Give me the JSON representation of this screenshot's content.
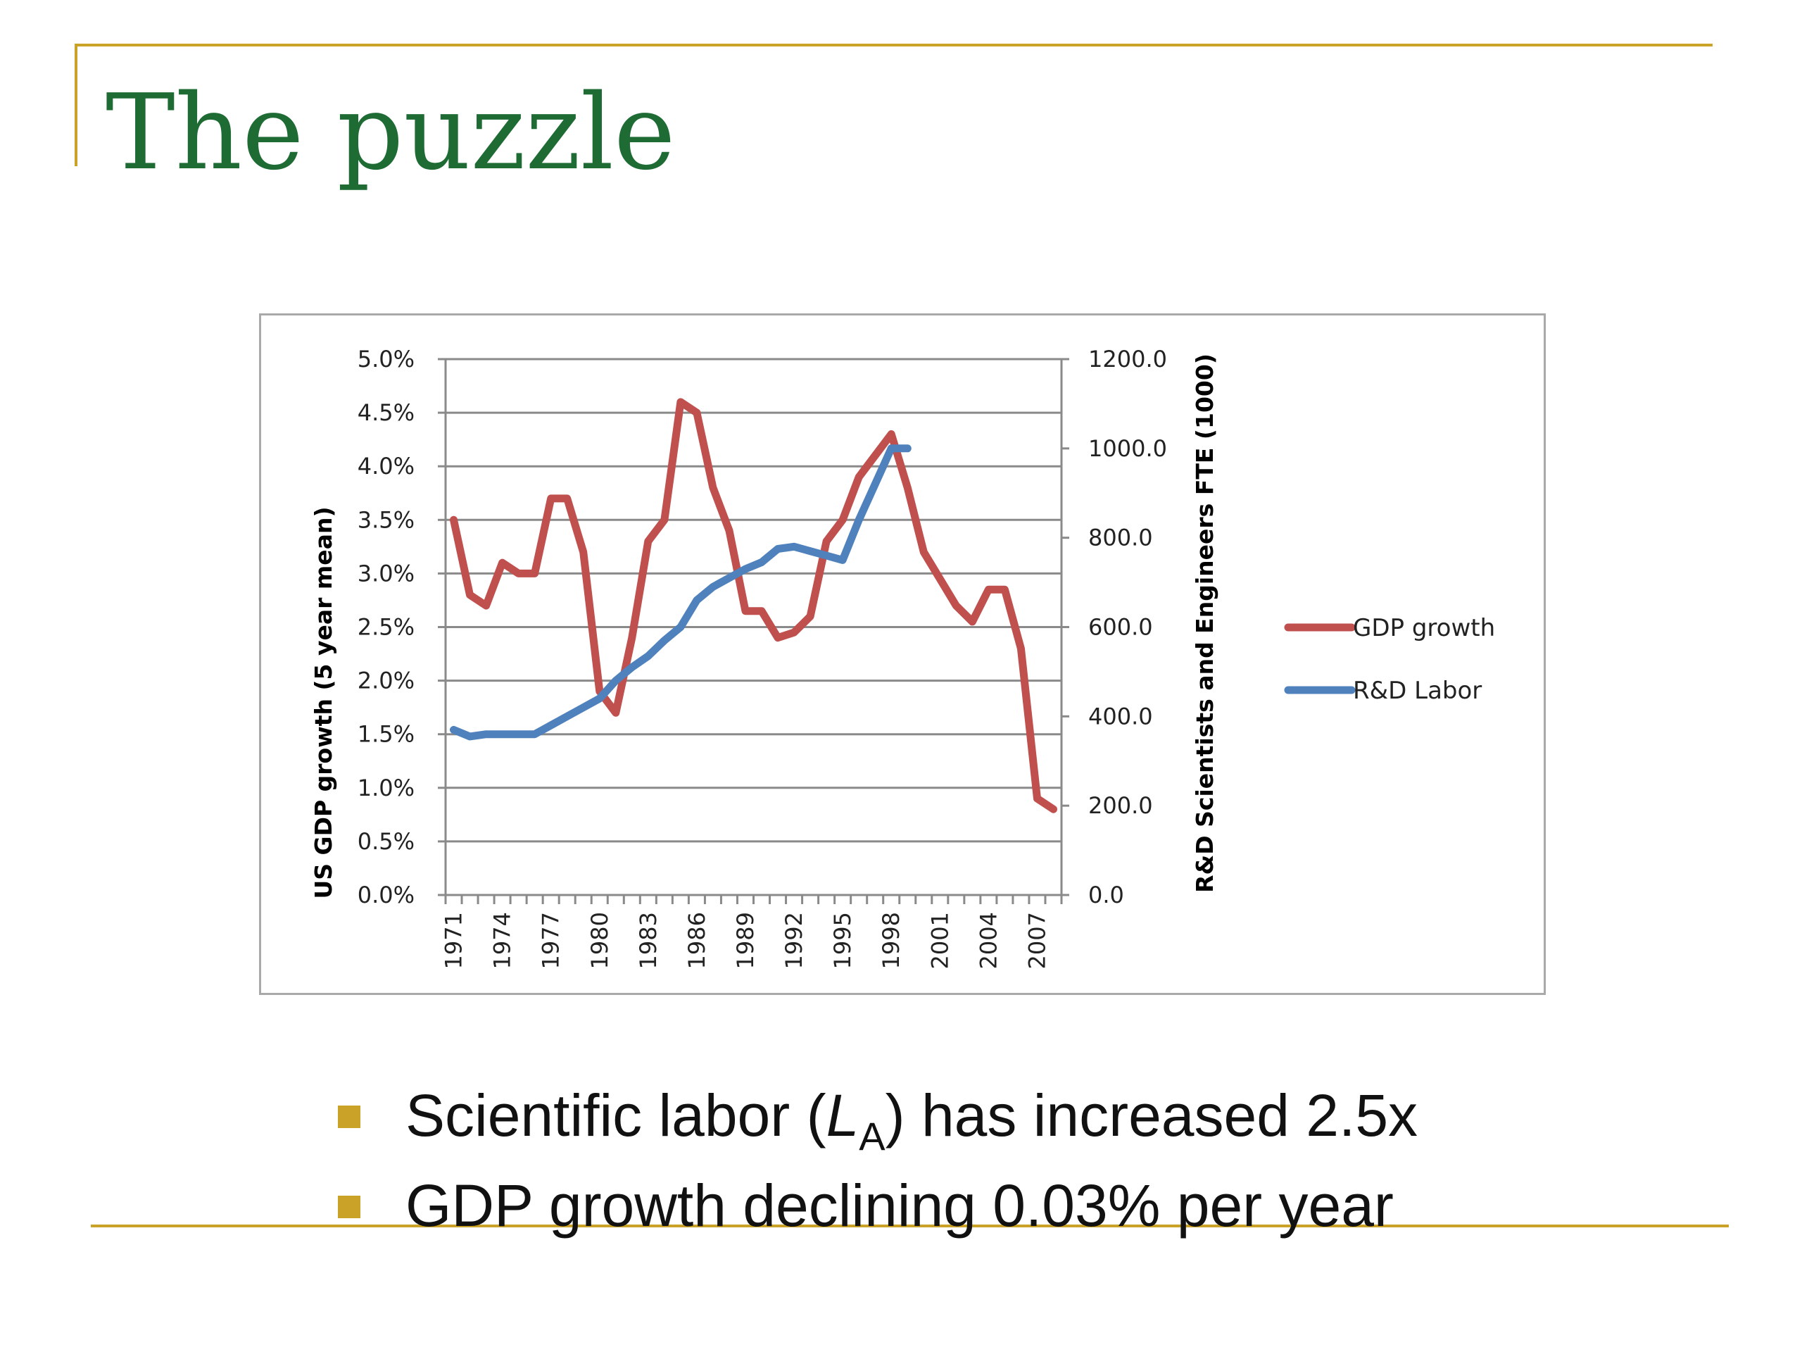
{
  "title": "The puzzle",
  "chart_data": {
    "type": "line",
    "x": [
      1971,
      1972,
      1973,
      1974,
      1975,
      1976,
      1977,
      1978,
      1979,
      1980,
      1981,
      1982,
      1983,
      1984,
      1985,
      1986,
      1987,
      1988,
      1989,
      1990,
      1991,
      1992,
      1993,
      1994,
      1995,
      1996,
      1997,
      1998,
      1999,
      2000,
      2001,
      2002,
      2003,
      2004,
      2005,
      2006,
      2007,
      2008
    ],
    "x_tick_labels": [
      "1971",
      "1974",
      "1977",
      "1980",
      "1983",
      "1986",
      "1989",
      "1992",
      "1995",
      "1998",
      "2001",
      "2004",
      "2007"
    ],
    "ylabel_left": "US GDP growth (5 year mean)",
    "ylabel_right": "R&D Scientists and Engineers FTE (1000)",
    "ylim_left": [
      0,
      5
    ],
    "ylim_right": [
      0,
      1200
    ],
    "y_ticks_left": [
      "0.0%",
      "0.5%",
      "1.0%",
      "1.5%",
      "2.0%",
      "2.5%",
      "3.0%",
      "3.5%",
      "4.0%",
      "4.5%",
      "5.0%"
    ],
    "y_ticks_right": [
      "0.0",
      "200.0",
      "400.0",
      "600.0",
      "800.0",
      "1000.0",
      "1200.0"
    ],
    "grid": true,
    "legend": "right",
    "series": [
      {
        "name": "GDP growth",
        "axis": "left",
        "color": "#C0504D",
        "values": [
          3.5,
          2.8,
          2.7,
          3.1,
          3.0,
          3.0,
          3.7,
          3.7,
          3.2,
          1.9,
          1.7,
          2.4,
          3.3,
          3.5,
          4.6,
          4.5,
          3.8,
          3.4,
          2.65,
          2.65,
          2.4,
          2.45,
          2.6,
          3.3,
          3.5,
          3.9,
          4.1,
          4.3,
          3.8,
          3.2,
          2.95,
          2.7,
          2.55,
          2.85,
          2.85,
          2.3,
          0.9,
          0.8
        ]
      },
      {
        "name": "R&D Labor",
        "axis": "right",
        "color": "#4F81BD",
        "values": [
          370,
          355,
          360,
          360,
          360,
          360,
          380,
          400,
          420,
          440,
          480,
          510,
          535,
          570,
          600,
          660,
          690,
          710,
          730,
          745,
          775,
          780,
          770,
          760,
          750,
          840,
          920,
          1000,
          1000,
          null,
          null,
          null,
          null,
          null,
          null,
          null,
          null,
          null
        ]
      }
    ]
  },
  "bullets": {
    "b1_pre": "Scientific labor (",
    "b1_var": "L",
    "b1_sub": "A",
    "b1_post": ") has increased 2.5x",
    "b2": "GDP growth declining 0.03% per year"
  }
}
